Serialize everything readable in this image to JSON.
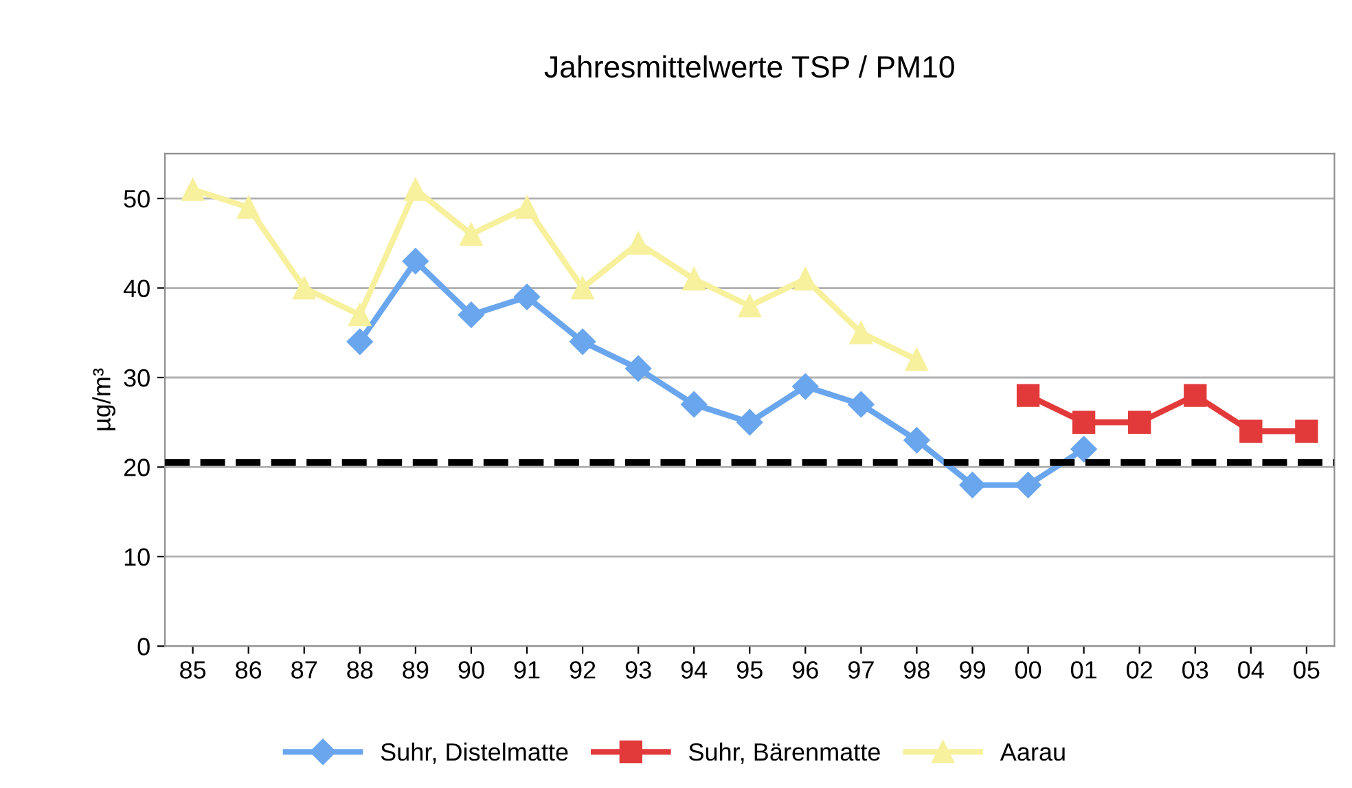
{
  "chart_data": {
    "type": "line",
    "title": "Jahresmittelwerte TSP / PM10",
    "ylabel": "µg/m³",
    "categories": [
      "85",
      "86",
      "87",
      "88",
      "89",
      "90",
      "91",
      "92",
      "93",
      "94",
      "95",
      "96",
      "97",
      "98",
      "99",
      "00",
      "01",
      "02",
      "03",
      "04",
      "05"
    ],
    "series": [
      {
        "name": "Suhr, Distelmatte",
        "color": "#6aa6ee",
        "marker": "diamond",
        "values": [
          null,
          null,
          null,
          34,
          43,
          37,
          39,
          34,
          31,
          27,
          25,
          29,
          27,
          23,
          18,
          18,
          22,
          null,
          null,
          null,
          null
        ]
      },
      {
        "name": "Suhr, Bärenmatte",
        "color": "#e23a3a",
        "marker": "square",
        "values": [
          null,
          null,
          null,
          null,
          null,
          null,
          null,
          null,
          null,
          null,
          null,
          null,
          null,
          null,
          null,
          28,
          25,
          25,
          28,
          24,
          24
        ]
      },
      {
        "name": "Aarau",
        "color": "#f7f09c",
        "marker": "triangle",
        "values": [
          51,
          49,
          40,
          37,
          51,
          46,
          49,
          40,
          45,
          41,
          38,
          41,
          35,
          32,
          null,
          null,
          null,
          null,
          null,
          null,
          null
        ]
      }
    ],
    "ylim": [
      0,
      55
    ],
    "yticks": [
      0,
      10,
      20,
      30,
      40,
      50
    ],
    "grid": "y",
    "legend": "bottom",
    "ref_lines": [
      {
        "axis": "y",
        "value": 20.5,
        "color": "#000000",
        "line_style": "dashed"
      }
    ]
  }
}
